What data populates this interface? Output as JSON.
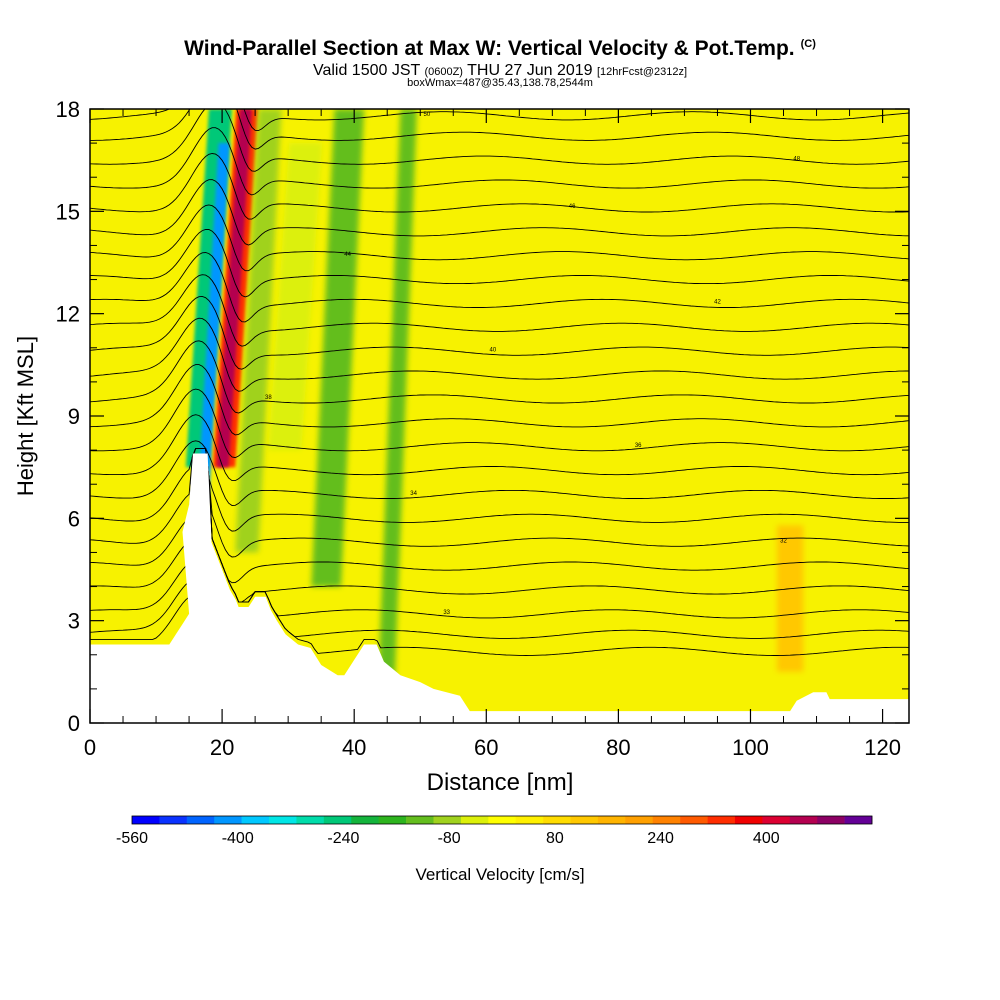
{
  "header": {
    "title": "Wind-Parallel Section at Max W: Vertical Velocity & Pot.Temp.",
    "title_tag": "(C)",
    "valid_prefix": "Valid 1500 JST",
    "valid_utc": "(0600Z)",
    "valid_date": "THU 27 Jun 2019",
    "forecast": "[12hrFcst@2312z]",
    "box_info": "boxWmax=487@35.43,138.78,2544m"
  },
  "chart_data": {
    "type": "heatmap",
    "xlabel": "Distance [nm]",
    "ylabel": "Height [Kft MSL]",
    "xlim": [
      0,
      124
    ],
    "ylim": [
      0,
      18
    ],
    "x_ticks": [
      "0",
      "20",
      "40",
      "60",
      "80",
      "100",
      "120"
    ],
    "y_ticks": [
      "0",
      "3",
      "6",
      "9",
      "12",
      "15",
      "18"
    ],
    "colorbar": {
      "label": "Vertical Velocity [cm/s]",
      "range": [
        -560,
        560
      ],
      "tick_labels": [
        "-560",
        "-400",
        "-240",
        "-80",
        "80",
        "240",
        "400"
      ],
      "tick_values": [
        -560,
        -400,
        -240,
        -80,
        80,
        240,
        400
      ],
      "colors": [
        "#0000ff",
        "#0a32ff",
        "#0064ff",
        "#0096ff",
        "#00c8ff",
        "#00e6e6",
        "#00dcaa",
        "#00c878",
        "#14b43c",
        "#2db41e",
        "#64be1e",
        "#a0d21e",
        "#dcf00a",
        "#ffff00",
        "#fff000",
        "#ffdc00",
        "#ffc800",
        "#ffb400",
        "#ffa000",
        "#ff8200",
        "#ff5a00",
        "#ff2d00",
        "#f00000",
        "#dc0032",
        "#b40050",
        "#8c0064",
        "#640096"
      ]
    },
    "terrain_kft": [
      [
        0,
        2.3
      ],
      [
        12,
        2.3
      ],
      [
        13,
        2.6
      ],
      [
        14,
        2.9
      ],
      [
        15,
        3.2
      ],
      [
        14,
        5.6
      ],
      [
        15,
        6.4
      ],
      [
        15.6,
        7.9
      ],
      [
        17.8,
        7.9
      ],
      [
        18.4,
        5.3
      ],
      [
        20.2,
        4.4
      ],
      [
        21.2,
        3.9
      ],
      [
        22.1,
        3.6
      ],
      [
        22.5,
        3.4
      ],
      [
        24,
        3.4
      ],
      [
        25,
        3.7
      ],
      [
        26.6,
        3.7
      ],
      [
        27.4,
        3.3
      ],
      [
        28.3,
        3
      ],
      [
        29.6,
        2.6
      ],
      [
        31.5,
        2.3
      ],
      [
        33.4,
        2.2
      ],
      [
        35,
        1.7
      ],
      [
        37.5,
        1.4
      ],
      [
        38.5,
        1.4
      ],
      [
        39.5,
        1.7
      ],
      [
        41.5,
        2.3
      ],
      [
        43.4,
        2.3
      ],
      [
        44.5,
        1.8
      ],
      [
        47,
        1.4
      ],
      [
        50,
        1.2
      ],
      [
        52,
        1.0
      ],
      [
        56,
        0.8
      ],
      [
        57.5,
        0.35
      ],
      [
        67,
        0.35
      ],
      [
        80,
        0.35
      ],
      [
        95,
        0.35
      ],
      [
        106,
        0.35
      ],
      [
        107,
        0.65
      ],
      [
        109.5,
        0.9
      ],
      [
        111.5,
        0.9
      ],
      [
        112,
        0.7
      ],
      [
        124,
        0.7
      ]
    ],
    "cells": [
      {
        "x": [
          14.5,
          18
        ],
        "y": [
          7.5,
          18
        ],
        "w": -250
      },
      {
        "x": [
          16.3,
          18
        ],
        "y": [
          6.6,
          17
        ],
        "w": -400
      },
      {
        "x": [
          18.6,
          22
        ],
        "y": [
          7.5,
          18
        ],
        "w": 320
      },
      {
        "x": [
          19.2,
          21
        ],
        "y": [
          7.5,
          18
        ],
        "w": 450
      },
      {
        "x": [
          22,
          25.5
        ],
        "y": [
          5,
          18
        ],
        "w": -90
      },
      {
        "x": [
          27,
          32
        ],
        "y": [
          8,
          17
        ],
        "w": -40
      },
      {
        "x": [
          33.5,
          38
        ],
        "y": [
          4,
          18
        ],
        "w": -110
      },
      {
        "x": [
          43.5,
          46
        ],
        "y": [
          0.5,
          18
        ],
        "w": -140
      },
      {
        "x": [
          104,
          108
        ],
        "y": [
          1.5,
          5.8
        ],
        "w": 130
      }
    ],
    "isentropes": [
      {
        "y0": 2.1,
        "label": "33"
      },
      {
        "y0": 2.6,
        "label": ""
      },
      {
        "y0": 3.2,
        "label": "33"
      },
      {
        "y0": 3.9,
        "label": ""
      },
      {
        "y0": 4.6,
        "label": ""
      },
      {
        "y0": 5.3,
        "label": "32"
      },
      {
        "y0": 6.0,
        "label": ""
      },
      {
        "y0": 6.7,
        "label": "34"
      },
      {
        "y0": 7.4,
        "label": ""
      },
      {
        "y0": 8.1,
        "label": "36"
      },
      {
        "y0": 8.8,
        "label": ""
      },
      {
        "y0": 9.5,
        "label": "38"
      },
      {
        "y0": 10.2,
        "label": ""
      },
      {
        "y0": 10.9,
        "label": "40"
      },
      {
        "y0": 11.6,
        "label": ""
      },
      {
        "y0": 12.3,
        "label": "42"
      },
      {
        "y0": 13.0,
        "label": ""
      },
      {
        "y0": 13.7,
        "label": "44"
      },
      {
        "y0": 14.4,
        "label": ""
      },
      {
        "y0": 15.1,
        "label": "46"
      },
      {
        "y0": 15.8,
        "label": ""
      },
      {
        "y0": 16.5,
        "label": "48"
      },
      {
        "y0": 17.2,
        "label": ""
      },
      {
        "y0": 17.8,
        "label": "50"
      }
    ]
  }
}
